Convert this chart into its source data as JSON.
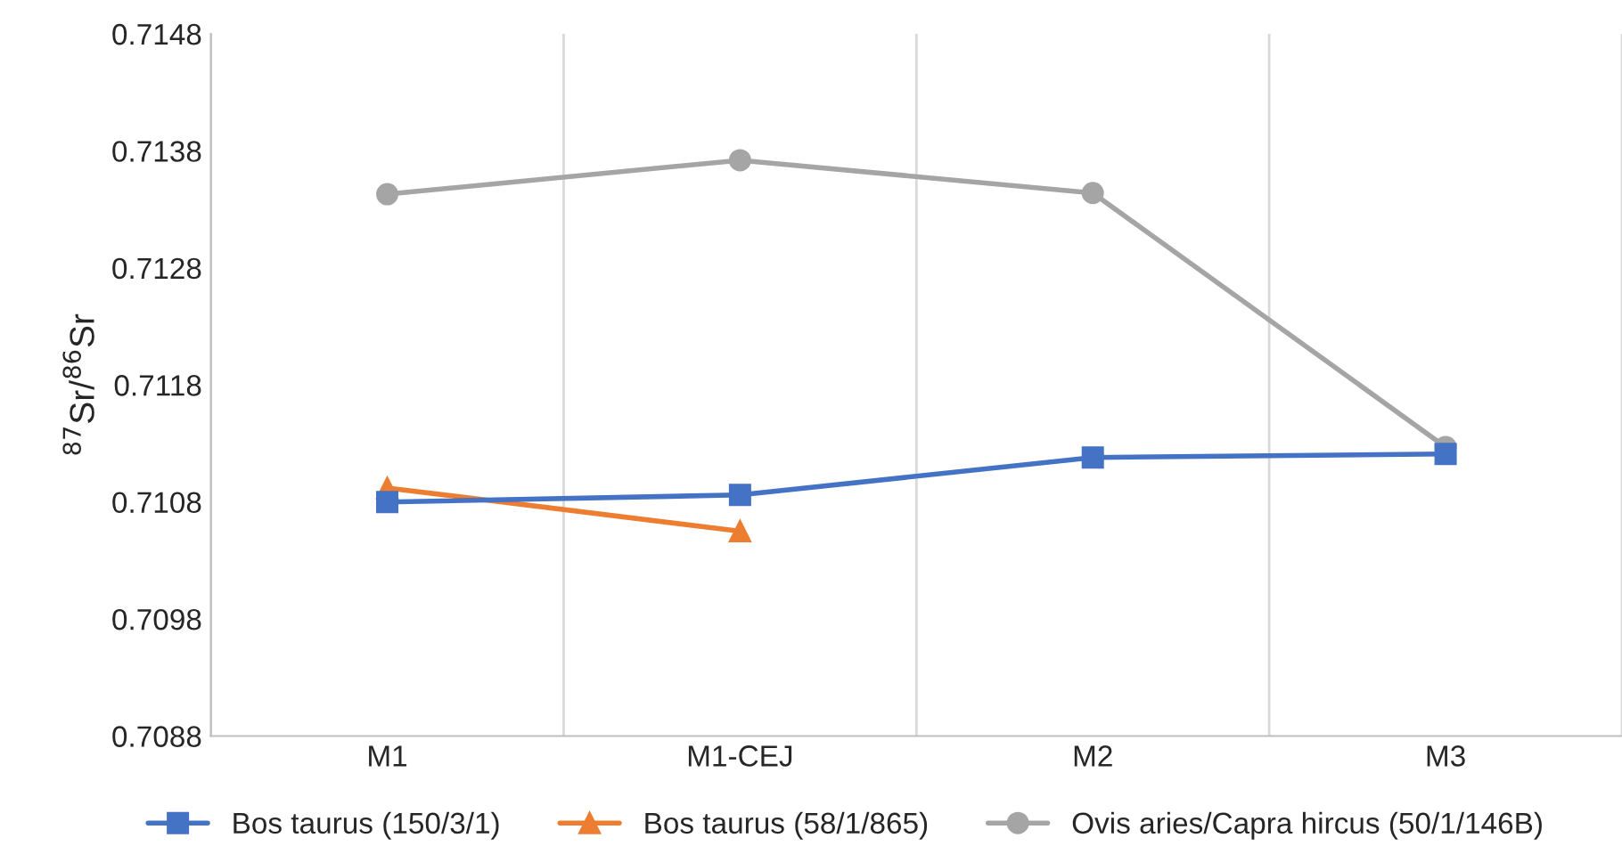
{
  "chart_data": {
    "type": "line",
    "ylabel": "$^{87}$Sr/$^{86}$Sr",
    "categories": [
      "M1",
      "M1-CEJ",
      "M2",
      "M3"
    ],
    "series": [
      {
        "name": "Bos taurus (150/3/1)",
        "color": "#4472c4",
        "marker": "square",
        "values": [
          0.7108,
          0.71086,
          0.71118,
          0.71121
        ]
      },
      {
        "name": "Bos taurus (58/1/865)",
        "color": "#ed7d31",
        "marker": "triangle",
        "values": [
          0.71092,
          0.71055,
          null,
          null
        ]
      },
      {
        "name": "Ovis aries/Capra hircus (50/1/146B)",
        "color": "#a5a5a5",
        "marker": "circle",
        "values": [
          0.71343,
          0.71372,
          0.71344,
          0.71127
        ]
      }
    ],
    "ylim": [
      0.7088,
      0.7148
    ],
    "yticks": [
      {
        "value": 0.7088,
        "label": "0.7088"
      },
      {
        "value": 0.7098,
        "label": "0.7098"
      },
      {
        "value": 0.7108,
        "label": "0.7108"
      },
      {
        "value": 0.7118,
        "label": "0.7118"
      },
      {
        "value": 0.7128,
        "label": "0.7128"
      },
      {
        "value": 0.7138,
        "label": "0.7138"
      },
      {
        "value": 0.7148,
        "label": "0.7148"
      }
    ],
    "grid": "x",
    "legend": "bottom"
  }
}
